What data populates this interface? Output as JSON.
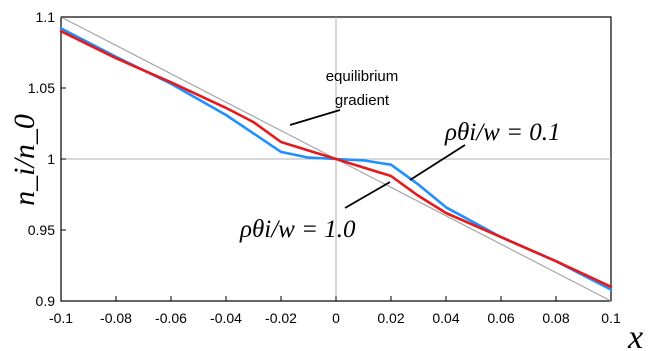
{
  "chart_data": {
    "type": "line",
    "title": "",
    "xlabel": "x",
    "ylabel": "n_i/n_0",
    "xlim": [
      -0.1,
      0.1
    ],
    "ylim": [
      0.9,
      1.1
    ],
    "xticks": [
      "-0.1",
      "-0.08",
      "-0.06",
      "-0.04",
      "-0.02",
      "0",
      "0.02",
      "0.04",
      "0.06",
      "0.08",
      "0.1"
    ],
    "yticks": [
      "0.9",
      "0.95",
      "1",
      "1.05",
      "1.1"
    ],
    "grid": false,
    "series": [
      {
        "name": "equilibrium gradient",
        "color": "#a6a6a6",
        "x": [
          -0.1,
          0.1
        ],
        "y": [
          1.1,
          0.9
        ]
      },
      {
        "name": "ρθi/w = 0.1",
        "color": "#1e90ff",
        "x": [
          -0.1,
          -0.08,
          -0.06,
          -0.04,
          -0.03,
          -0.02,
          -0.01,
          0,
          0.01,
          0.02,
          0.03,
          0.04,
          0.06,
          0.08,
          0.1
        ],
        "y": [
          1.092,
          1.072,
          1.053,
          1.031,
          1.018,
          1.005,
          1.001,
          1.0,
          0.999,
          0.996,
          0.982,
          0.966,
          0.945,
          0.928,
          0.908
        ]
      },
      {
        "name": "ρθi/w = 1.0",
        "color": "#e41a1c",
        "x": [
          -0.1,
          -0.08,
          -0.06,
          -0.04,
          -0.03,
          -0.02,
          0,
          0.02,
          0.03,
          0.04,
          0.06,
          0.08,
          0.1
        ],
        "y": [
          1.09,
          1.071,
          1.054,
          1.036,
          1.026,
          1.012,
          1.0,
          0.988,
          0.974,
          0.962,
          0.945,
          0.928,
          0.91
        ]
      }
    ],
    "annotations": {
      "equilibrium_line1": "equilibrium",
      "equilibrium_line2": "gradient",
      "label_01": "ρθi/w = 0.1",
      "label_10": "ρθi/w = 1.0"
    }
  }
}
